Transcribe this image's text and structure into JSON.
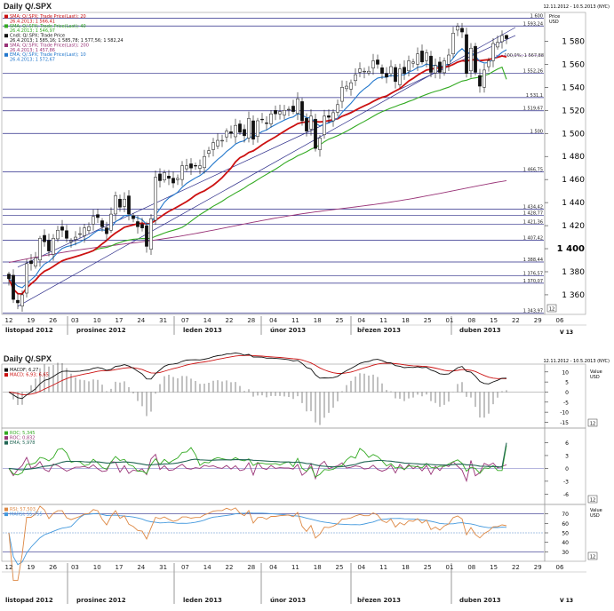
{
  "main_panel": {
    "title": "Daily Q/.SPX",
    "date_range": "12.11.2012 - 10.5.2013 (NYC)",
    "unit_lines": [
      "Price",
      "USD"
    ],
    "legend": [
      {
        "text": "SMA; Q/.SPX; Trade Price(Last); 20",
        "color": "#cc1111"
      },
      {
        "text": "26.4.2013; 1 566,41",
        "color": "#cc1111"
      },
      {
        "text": "SMA; Q/.SPX; Trade Price(Last); 40",
        "color": "#33aa22"
      },
      {
        "text": "26.4.2013; 1 546,97",
        "color": "#33aa22"
      },
      {
        "text": "Cndl; Q/.SPX; Trade Price",
        "color": "#111111"
      },
      {
        "text": "26.4.2013; 1 585,16; 1 585,78; 1 577,56; 1 582,24",
        "color": "#111111"
      },
      {
        "text": "SMA; Q/.SPX; Trade Price(Last); 200",
        "color": "#993377"
      },
      {
        "text": "26.4.2013; 1 457,86",
        "color": "#993377"
      },
      {
        "text": "EMA; Q/.SPX; Trade Price(Last); 10",
        "color": "#2277cc"
      },
      {
        "text": "26.4.2013; 1 572,67",
        "color": "#2277cc"
      }
    ],
    "level_labels": [
      "1 600",
      "1 593,24",
      "1 552,26",
      "1 531,1",
      "1 519,67",
      "1 500",
      "1 466,75",
      "1 434,42",
      "1 428,77",
      "1 421,36",
      "1 407,42",
      "1 388,44",
      "1 376,57",
      "1 370,07",
      "1 343,97"
    ],
    "fib_label": "100,0%; 1 567,88",
    "y_ticks": [
      "1 580",
      "1 560",
      "1 540",
      "1 520",
      "1 500",
      "1 480",
      "1 460",
      "1 440",
      "1 420",
      "1 400",
      "1 380",
      "1 360"
    ],
    "scale_badge": "12"
  },
  "x_axis": {
    "day_ticks": [
      "12",
      "19",
      "26",
      "03",
      "10",
      "17",
      "24",
      "31",
      "07",
      "14",
      "22",
      "28",
      "04",
      "11",
      "18",
      "25",
      "04",
      "11",
      "18",
      "25",
      "01",
      "08",
      "15",
      "22",
      "29",
      "06"
    ],
    "months": [
      "listopad 2012",
      "prosinec 2012",
      "leden 2013",
      "únor 2013",
      "březen 2013",
      "duben 2013"
    ],
    "week_label": "V 13",
    "bottom_day_ticks": [
      "12",
      "19",
      "26",
      "03",
      "10",
      "17",
      "24",
      "31",
      "07",
      "14",
      "22",
      "28",
      "04",
      "11",
      "18",
      "25",
      "04",
      "11",
      "18",
      "25",
      "01",
      "08",
      "15",
      "22",
      "29",
      "06"
    ],
    "bottom_months": [
      "listopad 2012",
      "prosinec 2012",
      "leden 2013",
      "únor 2013",
      "březen 2013",
      "duben 2013"
    ]
  },
  "macd_panel": {
    "title": "Daily Q/.SPX",
    "date_range": "12.11.2012 - 10.5.2013 (NYC)",
    "legend": [
      {
        "text": "MACDF; 6,27",
        "color": "#111111"
      },
      {
        "text": "MACD; 6,93; 6,65",
        "color": "#cc1111"
      }
    ],
    "unit_lines": [
      "Value",
      "USD"
    ],
    "y_ticks": [
      "10",
      "5",
      "0",
      "-5",
      "-10",
      "-15"
    ],
    "scale_badge": "12"
  },
  "roc_panel": {
    "legend": [
      {
        "text": "ROC; 5,345",
        "color": "#33aa22"
      },
      {
        "text": "ROC; 0,832",
        "color": "#993377"
      },
      {
        "text": "EMA; 5,978",
        "color": "#226655"
      }
    ],
    "y_ticks": [
      "6",
      "3",
      "0",
      "-3",
      "-6"
    ],
    "scale_badge": "12"
  },
  "rsi_panel": {
    "legend": [
      {
        "text": "RSI; 57,503",
        "color": "#dd8844"
      },
      {
        "text": "MARSI; 55,755",
        "color": "#4499dd"
      }
    ],
    "unit_lines": [
      "Value",
      "USD"
    ],
    "y_ticks": [
      "70",
      "60",
      "50",
      "40",
      "30"
    ],
    "scale_badge": "12"
  },
  "chart_data": {
    "type": "candlestick",
    "title": "Daily Q/.SPX",
    "ylabel": "Price USD",
    "ylim": [
      1343,
      1605
    ],
    "x": [
      "2012-11-13",
      "2012-11-14",
      "2012-11-15",
      "2012-11-16",
      "2012-11-19",
      "2012-11-20",
      "2012-11-21",
      "2012-11-23",
      "2012-11-26",
      "2012-11-27",
      "2012-11-28",
      "2012-11-29",
      "2012-11-30",
      "2012-12-03",
      "2012-12-04",
      "2012-12-05",
      "2012-12-06",
      "2012-12-07",
      "2012-12-10",
      "2012-12-11",
      "2012-12-12",
      "2012-12-13",
      "2012-12-14",
      "2012-12-17",
      "2012-12-18",
      "2012-12-19",
      "2012-12-20",
      "2012-12-21",
      "2012-12-24",
      "2012-12-26",
      "2012-12-27",
      "2012-12-28",
      "2012-12-31",
      "2013-01-02",
      "2013-01-03",
      "2013-01-04",
      "2013-01-07",
      "2013-01-08",
      "2013-01-09",
      "2013-01-10",
      "2013-01-11",
      "2013-01-14",
      "2013-01-15",
      "2013-01-16",
      "2013-01-17",
      "2013-01-18",
      "2013-01-22",
      "2013-01-23",
      "2013-01-24",
      "2013-01-25",
      "2013-01-28",
      "2013-01-29",
      "2013-01-30",
      "2013-01-31",
      "2013-02-01",
      "2013-02-04",
      "2013-02-05",
      "2013-02-06",
      "2013-02-07",
      "2013-02-08",
      "2013-02-11",
      "2013-02-12",
      "2013-02-13",
      "2013-02-14",
      "2013-02-15",
      "2013-02-19",
      "2013-02-20",
      "2013-02-21",
      "2013-02-22",
      "2013-02-25",
      "2013-02-26",
      "2013-02-27",
      "2013-02-28",
      "2013-03-01",
      "2013-03-04",
      "2013-03-05",
      "2013-03-06",
      "2013-03-07",
      "2013-03-08",
      "2013-03-11",
      "2013-03-12",
      "2013-03-13",
      "2013-03-14",
      "2013-03-15",
      "2013-03-18",
      "2013-03-19",
      "2013-03-20",
      "2013-03-21",
      "2013-03-22",
      "2013-03-25",
      "2013-03-26",
      "2013-03-27",
      "2013-03-28",
      "2013-04-01",
      "2013-04-02",
      "2013-04-03",
      "2013-04-04",
      "2013-04-05",
      "2013-04-08",
      "2013-04-09",
      "2013-04-10",
      "2013-04-11",
      "2013-04-12",
      "2013-04-15",
      "2013-04-16",
      "2013-04-17",
      "2013-04-18",
      "2013-04-19",
      "2013-04-22",
      "2013-04-23",
      "2013-04-24",
      "2013-04-25",
      "2013-04-26"
    ],
    "close": [
      1374,
      1356,
      1353,
      1360,
      1387,
      1387,
      1392,
      1409,
      1406,
      1398,
      1409,
      1416,
      1416,
      1409,
      1407,
      1410,
      1413,
      1418,
      1419,
      1428,
      1427,
      1419,
      1413,
      1430,
      1446,
      1436,
      1443,
      1430,
      1426,
      1419,
      1418,
      1402,
      1426,
      1462,
      1459,
      1466,
      1461,
      1457,
      1461,
      1472,
      1472,
      1470,
      1472,
      1472,
      1480,
      1485,
      1492,
      1494,
      1494,
      1502,
      1500,
      1507,
      1501,
      1498,
      1513,
      1495,
      1511,
      1512,
      1509,
      1517,
      1517,
      1519,
      1520,
      1521,
      1519,
      1530,
      1511,
      1502,
      1515,
      1487,
      1496,
      1515,
      1514,
      1518,
      1525,
      1540,
      1541,
      1544,
      1551,
      1556,
      1554,
      1554,
      1563,
      1560,
      1552,
      1549,
      1558,
      1545,
      1556,
      1552,
      1563,
      1562,
      1569,
      1562,
      1570,
      1553,
      1559,
      1553,
      1563,
      1568,
      1587,
      1593,
      1588,
      1552,
      1574,
      1553,
      1541,
      1555,
      1563,
      1578,
      1579,
      1585,
      1582
    ],
    "sma20_last": 1566.41,
    "sma40_last": 1546.97,
    "sma200_last": 1457.86,
    "ema10_last": 1572.67,
    "last_candle": {
      "date": "2013-04-26",
      "open": 1585.16,
      "high": 1585.78,
      "low": 1577.56,
      "close": 1582.24
    },
    "macd_last": {
      "macdf": 6.27,
      "macd": 6.93,
      "signal": 6.65
    },
    "roc_last": {
      "roc1": 5.345,
      "roc2": 0.832,
      "ema": 5.978
    },
    "rsi_last": {
      "rsi": 57.503,
      "marsi": 55.755
    }
  }
}
